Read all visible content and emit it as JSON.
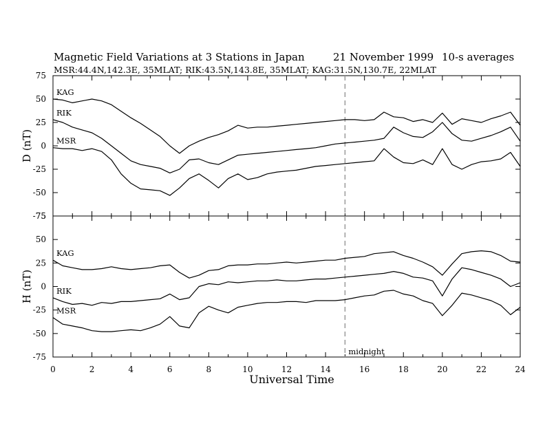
{
  "header": {
    "title": "Magnetic Field Variations at 3 Stations in Japan",
    "date": "21 November 1999",
    "averaging": "10-s averages",
    "stations": "MSR:44.4N,142.3E, 35MLAT;  RIK:43.5N,143.8E, 35MLAT;  KAG:31.5N,130.7E, 22MLAT"
  },
  "xaxis": {
    "label": "Universal Time",
    "ticks": [
      "0",
      "2",
      "4",
      "6",
      "8",
      "10",
      "12",
      "14",
      "16",
      "18",
      "20",
      "22",
      "24"
    ]
  },
  "marker": {
    "label": "midnight",
    "x": 15
  },
  "chart_data": [
    {
      "type": "line",
      "panel": "D",
      "ylabel": "D (nT)",
      "xlim": [
        0,
        24
      ],
      "ylim": [
        -75,
        75
      ],
      "yticks": [
        "75",
        "50",
        "25",
        "0",
        "-25",
        "-50",
        "-75"
      ],
      "series": [
        {
          "name": "KAG",
          "x": [
            0,
            0.5,
            1,
            1.5,
            2,
            2.5,
            3,
            3.5,
            4,
            4.5,
            5,
            5.5,
            6,
            6.5,
            7,
            7.5,
            8,
            8.5,
            9,
            9.5,
            10,
            10.5,
            11,
            11.5,
            12,
            12.5,
            13,
            13.5,
            14,
            14.5,
            15,
            15.5,
            16,
            16.5,
            17,
            17.5,
            18,
            18.5,
            19,
            19.5,
            20,
            20.5,
            21,
            21.5,
            22,
            22.5,
            23,
            23.5,
            24
          ],
          "values": [
            50,
            49,
            46,
            48,
            50,
            48,
            44,
            37,
            30,
            24,
            17,
            10,
            0,
            -8,
            0,
            5,
            9,
            12,
            16,
            22,
            19,
            20,
            20,
            21,
            22,
            23,
            24,
            25,
            26,
            27,
            28,
            28,
            27,
            28,
            36,
            31,
            30,
            26,
            28,
            25,
            35,
            23,
            29,
            27,
            25,
            29,
            32,
            36,
            22
          ]
        },
        {
          "name": "RIK",
          "x": [
            0,
            0.5,
            1,
            1.5,
            2,
            2.5,
            3,
            3.5,
            4,
            4.5,
            5,
            5.5,
            6,
            6.5,
            7,
            7.5,
            8,
            8.5,
            9,
            9.5,
            10,
            10.5,
            11,
            11.5,
            12,
            12.5,
            13,
            13.5,
            14,
            14.5,
            15,
            15.5,
            16,
            16.5,
            17,
            17.5,
            18,
            18.5,
            19,
            19.5,
            20,
            20.5,
            21,
            21.5,
            22,
            22.5,
            23,
            23.5,
            24
          ],
          "values": [
            28,
            25,
            20,
            17,
            14,
            8,
            0,
            -8,
            -16,
            -20,
            -22,
            -24,
            -29,
            -25,
            -15,
            -14,
            -18,
            -20,
            -15,
            -10,
            -9,
            -8,
            -7,
            -6,
            -5,
            -4,
            -3,
            -2,
            0,
            2,
            3,
            4,
            5,
            6,
            8,
            20,
            14,
            10,
            9,
            15,
            25,
            13,
            6,
            5,
            8,
            11,
            15,
            20,
            5
          ]
        },
        {
          "name": "MSR",
          "x": [
            0,
            0.5,
            1,
            1.5,
            2,
            2.5,
            3,
            3.5,
            4,
            4.5,
            5,
            5.5,
            6,
            6.5,
            7,
            7.5,
            8,
            8.5,
            9,
            9.5,
            10,
            10.5,
            11,
            11.5,
            12,
            12.5,
            13,
            13.5,
            14,
            14.5,
            15,
            15.5,
            16,
            16.5,
            17,
            17.5,
            18,
            18.5,
            19,
            19.5,
            20,
            20.5,
            21,
            21.5,
            22,
            22.5,
            23,
            23.5,
            24
          ],
          "values": [
            -2,
            -3,
            -3,
            -5,
            -3,
            -6,
            -15,
            -30,
            -40,
            -46,
            -47,
            -48,
            -53,
            -45,
            -35,
            -30,
            -37,
            -45,
            -35,
            -30,
            -36,
            -34,
            -30,
            -28,
            -27,
            -26,
            -24,
            -22,
            -21,
            -20,
            -19,
            -18,
            -17,
            -16,
            -3,
            -12,
            -18,
            -19,
            -15,
            -20,
            -3,
            -20,
            -25,
            -20,
            -17,
            -16,
            -14,
            -7,
            -22
          ]
        }
      ]
    },
    {
      "type": "line",
      "panel": "H",
      "ylabel": "H (nT)",
      "xlim": [
        0,
        24
      ],
      "ylim": [
        -75,
        75
      ],
      "yticks": [
        "75",
        "50",
        "25",
        "0",
        "-25",
        "-50",
        "-75"
      ],
      "series": [
        {
          "name": "KAG",
          "x": [
            0,
            0.5,
            1,
            1.5,
            2,
            2.5,
            3,
            3.5,
            4,
            4.5,
            5,
            5.5,
            6,
            6.5,
            7,
            7.5,
            8,
            8.5,
            9,
            9.5,
            10,
            10.5,
            11,
            11.5,
            12,
            12.5,
            13,
            13.5,
            14,
            14.5,
            15,
            15.5,
            16,
            16.5,
            17,
            17.5,
            18,
            18.5,
            19,
            19.5,
            20,
            20.5,
            21,
            21.5,
            22,
            22.5,
            23,
            23.5,
            24
          ],
          "values": [
            28,
            22,
            20,
            18,
            18,
            19,
            21,
            19,
            18,
            19,
            20,
            22,
            23,
            15,
            9,
            12,
            17,
            18,
            22,
            23,
            23,
            24,
            24,
            25,
            26,
            25,
            26,
            27,
            28,
            28,
            30,
            31,
            32,
            35,
            36,
            37,
            33,
            30,
            26,
            21,
            12,
            24,
            35,
            37,
            38,
            37,
            33,
            27,
            26
          ]
        },
        {
          "name": "RIK",
          "x": [
            0,
            0.5,
            1,
            1.5,
            2,
            2.5,
            3,
            3.5,
            4,
            4.5,
            5,
            5.5,
            6,
            6.5,
            7,
            7.5,
            8,
            8.5,
            9,
            9.5,
            10,
            10.5,
            11,
            11.5,
            12,
            12.5,
            13,
            13.5,
            14,
            14.5,
            15,
            15.5,
            16,
            16.5,
            17,
            17.5,
            18,
            18.5,
            19,
            19.5,
            20,
            20.5,
            21,
            21.5,
            22,
            22.5,
            23,
            23.5,
            24
          ],
          "values": [
            -12,
            -16,
            -19,
            -18,
            -20,
            -17,
            -18,
            -16,
            -16,
            -15,
            -14,
            -13,
            -8,
            -14,
            -12,
            0,
            3,
            2,
            5,
            4,
            5,
            6,
            6,
            7,
            6,
            6,
            7,
            8,
            8,
            9,
            10,
            11,
            12,
            13,
            14,
            16,
            14,
            10,
            9,
            6,
            -10,
            8,
            20,
            18,
            15,
            12,
            8,
            0,
            4
          ]
        },
        {
          "name": "MSR",
          "x": [
            0,
            0.5,
            1,
            1.5,
            2,
            2.5,
            3,
            3.5,
            4,
            4.5,
            5,
            5.5,
            6,
            6.5,
            7,
            7.5,
            8,
            8.5,
            9,
            9.5,
            10,
            10.5,
            11,
            11.5,
            12,
            12.5,
            13,
            13.5,
            14,
            14.5,
            15,
            15.5,
            16,
            16.5,
            17,
            17.5,
            18,
            18.5,
            19,
            19.5,
            20,
            20.5,
            21,
            21.5,
            22,
            22.5,
            23,
            23.5,
            24
          ],
          "values": [
            -33,
            -40,
            -42,
            -44,
            -47,
            -48,
            -48,
            -47,
            -46,
            -47,
            -44,
            -40,
            -32,
            -42,
            -44,
            -28,
            -21,
            -25,
            -28,
            -22,
            -20,
            -18,
            -17,
            -17,
            -16,
            -16,
            -17,
            -15,
            -15,
            -15,
            -14,
            -12,
            -10,
            -9,
            -5,
            -4,
            -8,
            -10,
            -15,
            -18,
            -31,
            -20,
            -7,
            -9,
            -12,
            -15,
            -20,
            -30,
            -22
          ]
        }
      ]
    }
  ]
}
